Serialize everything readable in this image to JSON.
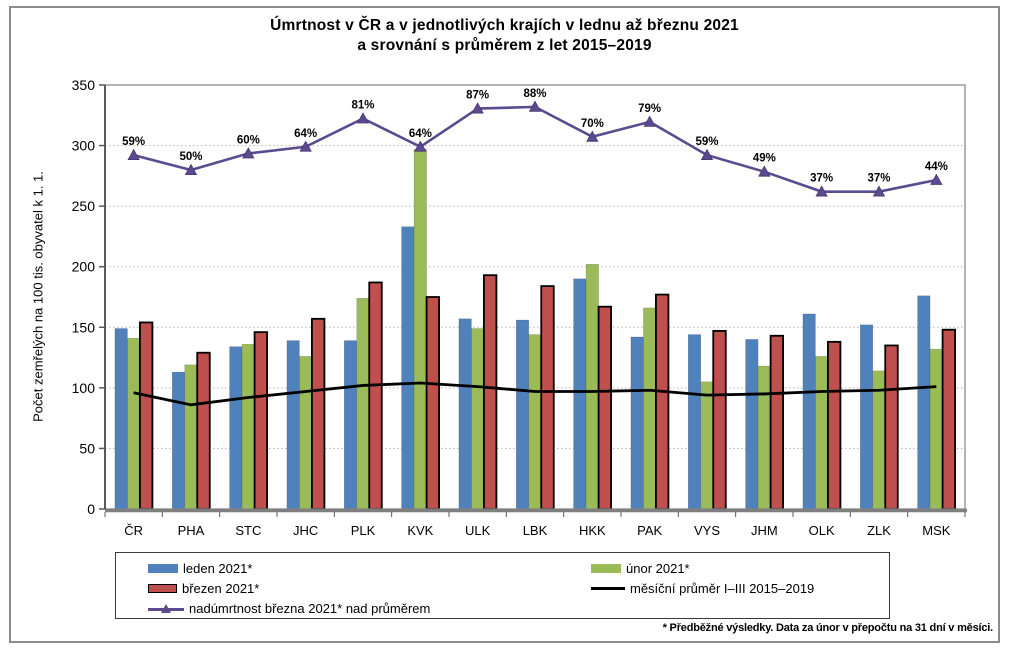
{
  "title": {
    "line1": "Úmrtnost v ČR a v jednotlivých krajích v lednu až březnu 2021",
    "line2": "a srovnání s průměrem z let 2015–2019"
  },
  "y_axis": {
    "label": "Počet zemřelých na 100 tis. obyvatel k 1. 1.",
    "ticks": [
      0,
      50,
      100,
      150,
      200,
      250,
      300,
      350
    ]
  },
  "chart_data": {
    "type": "bar",
    "title": "Úmrtnost v ČR a v jednotlivých krajích v lednu až březnu 2021 a srovnání s průměrem z let 2015–2019",
    "ylabel": "Počet zemřelých na 100 tis. obyvatel k 1. 1.",
    "ylim": [
      0,
      350
    ],
    "grid": true,
    "legend_position": "bottom",
    "categories": [
      "ČR",
      "PHA",
      "STC",
      "JHC",
      "PLK",
      "KVK",
      "ULK",
      "LBK",
      "HKK",
      "PAK",
      "VYS",
      "JHM",
      "OLK",
      "ZLK",
      "MSK"
    ],
    "series": [
      {
        "name": "leden 2021*",
        "type": "bar",
        "color": "#4F81BD",
        "values": [
          149,
          113,
          134,
          139,
          139,
          233,
          157,
          156,
          190,
          142,
          144,
          140,
          161,
          152,
          176
        ]
      },
      {
        "name": "únor 2021*",
        "type": "bar",
        "color": "#9BBB59",
        "values": [
          141,
          119,
          136,
          126,
          174,
          297,
          149,
          144,
          202,
          166,
          105,
          118,
          126,
          114,
          132
        ]
      },
      {
        "name": "březen 2021*",
        "type": "bar",
        "color": "#C0504D",
        "border": "#000000",
        "values": [
          154,
          129,
          146,
          157,
          187,
          175,
          193,
          184,
          167,
          177,
          147,
          143,
          138,
          135,
          148
        ]
      },
      {
        "name": "měsíční průměr I–III  2015–2019",
        "type": "line",
        "color": "#000000",
        "values": [
          96,
          86,
          92,
          97,
          102,
          104,
          101,
          97,
          97,
          98,
          94,
          95,
          97,
          98,
          101
        ]
      },
      {
        "name": "nadúmrtnost března 2021* nad průměrem",
        "type": "line",
        "axis": "secondary",
        "color": "#5B4A8F",
        "marker": "triangle",
        "unit": "%",
        "values": [
          59,
          50,
          60,
          64,
          81,
          64,
          87,
          88,
          70,
          79,
          59,
          49,
          37,
          37,
          44
        ]
      }
    ]
  },
  "footnote": "* Předběžné výsledky. Data za únor v přepočtu na 31 dní v měsíci."
}
